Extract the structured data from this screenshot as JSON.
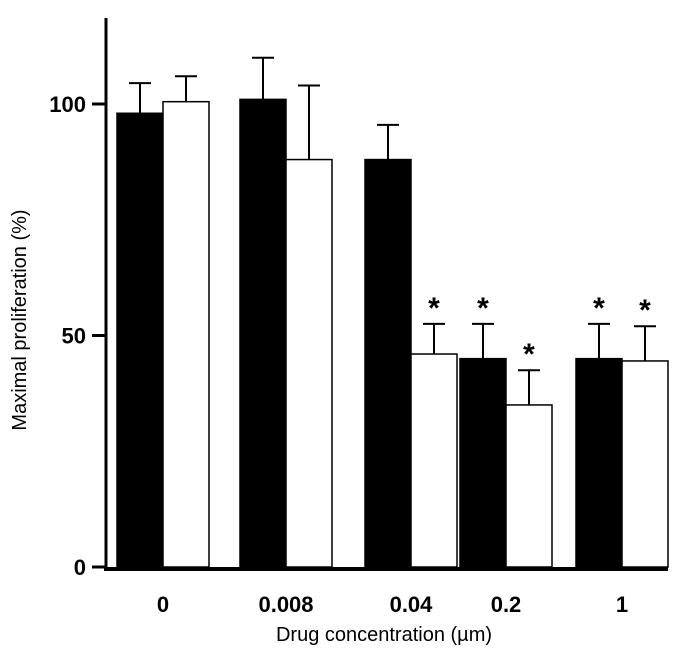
{
  "chart_data": {
    "type": "bar",
    "title": "",
    "xlabel": "Drug concentration (µm)",
    "ylabel": "Maximal proliferation (%)",
    "categories": [
      "0",
      "0.008",
      "0.04",
      "0.2",
      "1"
    ],
    "ylim": [
      0,
      120
    ],
    "yticks": [
      "0",
      "50",
      "100"
    ],
    "grid": false,
    "legend": "none",
    "significance_marker": "*",
    "series": [
      {
        "color": "#000000",
        "values": [
          98,
          101,
          88,
          45,
          45
        ],
        "errors": [
          6.5,
          9,
          7.5,
          7.5,
          7.5
        ],
        "significant": [
          false,
          false,
          false,
          true,
          true
        ]
      },
      {
        "color": "#ffffff",
        "values": [
          100.5,
          88,
          46,
          35,
          44.5
        ],
        "errors": [
          5.5,
          16,
          6.5,
          7.5,
          7.5
        ],
        "significant": [
          false,
          false,
          true,
          true,
          true
        ]
      }
    ]
  }
}
